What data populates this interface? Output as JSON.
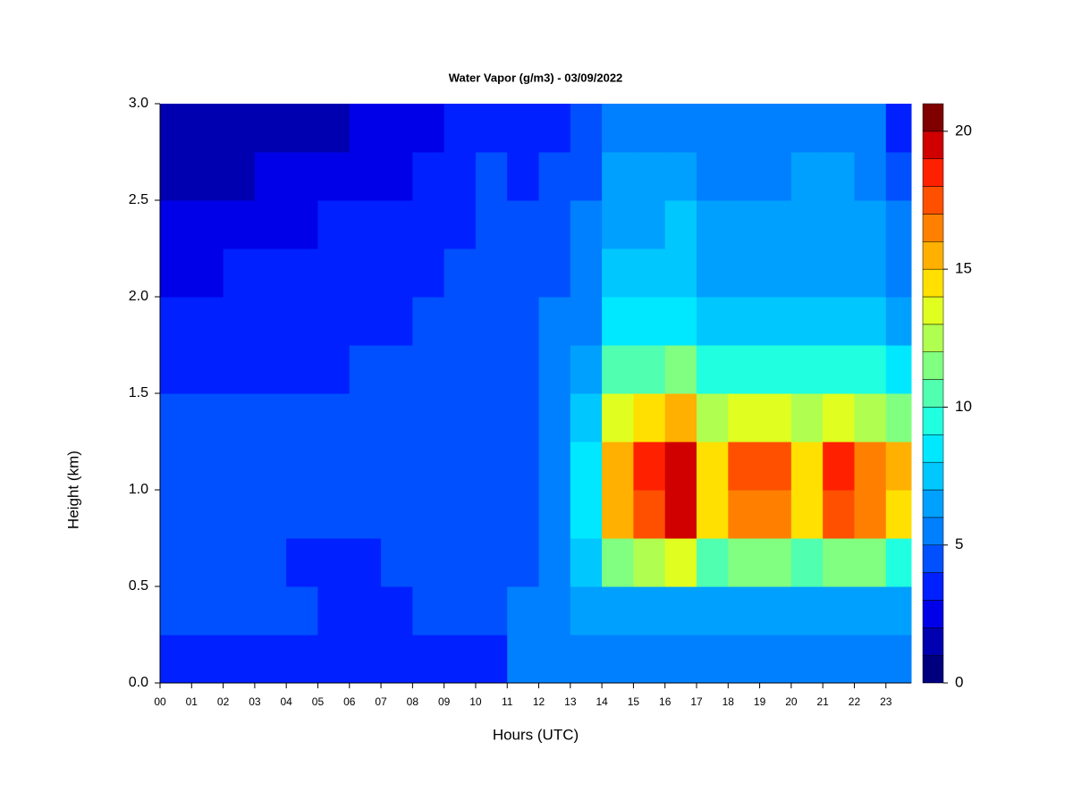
{
  "chart_data": {
    "type": "heatmap",
    "title": "Water Vapor (g/m3) - 03/09/2022",
    "xlabel": "Hours (UTC)",
    "ylabel": "Height (km)",
    "x": [
      0,
      1,
      2,
      3,
      4,
      5,
      6,
      7,
      8,
      9,
      10,
      11,
      12,
      13,
      14,
      15,
      16,
      17,
      18,
      19,
      20,
      21,
      22,
      23
    ],
    "y": [
      0,
      0.25,
      0.5,
      0.75,
      1,
      1.25,
      1.5,
      1.75,
      2,
      2.25,
      2.5,
      2.75
    ],
    "values": [
      [
        3,
        4,
        4,
        4,
        4,
        4,
        3,
        3,
        2,
        2,
        1,
        1
      ],
      [
        3,
        4,
        4,
        4,
        4,
        4,
        3,
        3,
        2,
        2,
        1,
        1
      ],
      [
        3,
        4,
        4,
        4,
        4,
        4,
        3,
        3,
        3,
        2,
        1,
        1
      ],
      [
        3,
        4,
        4,
        4,
        4,
        4,
        3,
        3,
        3,
        2,
        2,
        1
      ],
      [
        3,
        4,
        3,
        4,
        4,
        4,
        3,
        3,
        3,
        2,
        2,
        1
      ],
      [
        3,
        3,
        3,
        4,
        4,
        4,
        3,
        3,
        3,
        3,
        2,
        1
      ],
      [
        3,
        3,
        3,
        4,
        4,
        4,
        4,
        3,
        3,
        3,
        2,
        2
      ],
      [
        3,
        3,
        4,
        4,
        4,
        4,
        4,
        3,
        3,
        3,
        2,
        2
      ],
      [
        3,
        4,
        4,
        4,
        4,
        4,
        4,
        4,
        3,
        3,
        3,
        2
      ],
      [
        3,
        4,
        4,
        4,
        4,
        4,
        4,
        4,
        4,
        3,
        3,
        3
      ],
      [
        3,
        4,
        4,
        4,
        4,
        4,
        4,
        4,
        4,
        4,
        4,
        3
      ],
      [
        5,
        5,
        4,
        4,
        4,
        4,
        4,
        4,
        4,
        4,
        3,
        3
      ],
      [
        5,
        5,
        5,
        5,
        5,
        5,
        5,
        5,
        4,
        4,
        4,
        3
      ],
      [
        5,
        6,
        7,
        8,
        8,
        7,
        6,
        5,
        5,
        5,
        4,
        4
      ],
      [
        5,
        6,
        11,
        15,
        15,
        13,
        10,
        8,
        7,
        6,
        6,
        5
      ],
      [
        5,
        6,
        12,
        17,
        18,
        14,
        10,
        8,
        7,
        6,
        6,
        5
      ],
      [
        5,
        6,
        13,
        19,
        19,
        15,
        11,
        8,
        7,
        7,
        6,
        5
      ],
      [
        5,
        6,
        10,
        14,
        14,
        12,
        9,
        7,
        6,
        6,
        5,
        5
      ],
      [
        5,
        6,
        11,
        16,
        17,
        13,
        9,
        7,
        6,
        6,
        5,
        5
      ],
      [
        5,
        6,
        11,
        16,
        17,
        13,
        9,
        7,
        6,
        6,
        5,
        5
      ],
      [
        5,
        6,
        10,
        14,
        14,
        12,
        9,
        7,
        6,
        6,
        6,
        5
      ],
      [
        5,
        6,
        11,
        17,
        18,
        13,
        9,
        7,
        6,
        6,
        6,
        5
      ],
      [
        5,
        6,
        11,
        16,
        16,
        12,
        9,
        7,
        6,
        6,
        5,
        5
      ],
      [
        5,
        6,
        9,
        14,
        15,
        11,
        8,
        6,
        5,
        5,
        4,
        3
      ]
    ],
    "xlim": [
      0,
      23.8
    ],
    "ylim": [
      0,
      3
    ],
    "zlim": [
      0,
      21
    ],
    "xticks": [
      {
        "value": 0,
        "label": "00"
      },
      {
        "value": 1,
        "label": "01"
      },
      {
        "value": 2,
        "label": "02"
      },
      {
        "value": 3,
        "label": "03"
      },
      {
        "value": 4,
        "label": "04"
      },
      {
        "value": 5,
        "label": "05"
      },
      {
        "value": 6,
        "label": "06"
      },
      {
        "value": 7,
        "label": "07"
      },
      {
        "value": 8,
        "label": "08"
      },
      {
        "value": 9,
        "label": "09"
      },
      10,
      11,
      12,
      13,
      14,
      15,
      16,
      17,
      18,
      19,
      20,
      21,
      22,
      23
    ],
    "yticks": [
      {
        "value": 0,
        "label": "0.0"
      },
      0.5,
      {
        "value": 1,
        "label": "1.0"
      },
      1.5,
      {
        "value": 2,
        "label": "2.0"
      },
      2.5,
      {
        "value": 3,
        "label": "3.0"
      }
    ],
    "zticks": [
      0,
      5,
      10,
      15,
      20
    ],
    "colors": [
      "#00007f",
      "#0000b0",
      "#0000e8",
      "#0020ff",
      "#0050ff",
      "#0080ff",
      "#00a0ff",
      "#00c8ff",
      "#00e8ff",
      "#20ffe0",
      "#50ffb0",
      "#80ff80",
      "#b0ff50",
      "#e0ff20",
      "#ffe000",
      "#ffb000",
      "#ff8000",
      "#ff5000",
      "#ff2000",
      "#d00000",
      "#800000"
    ]
  }
}
